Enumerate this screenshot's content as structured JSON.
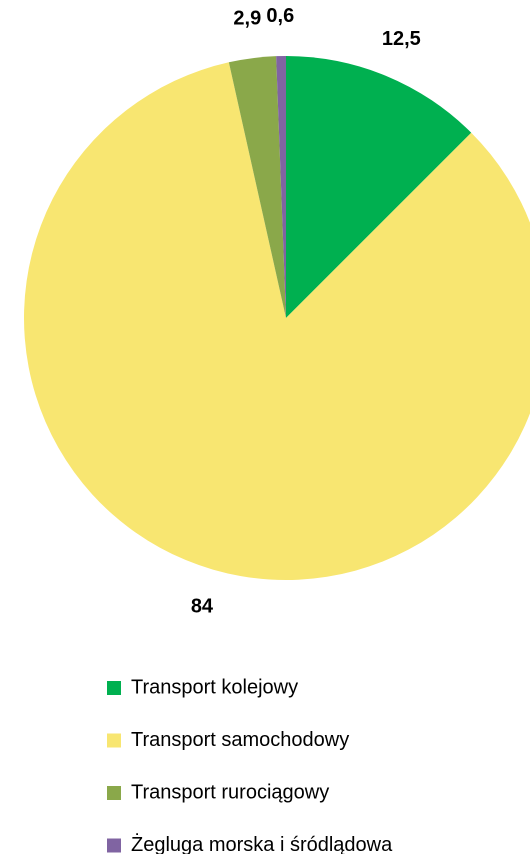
{
  "chart_data": {
    "type": "pie",
    "categories": [
      "Transport kolejowy",
      "Transport samochodowy",
      "Transport rurociągowy",
      "Żegluga morska i śródlądowa"
    ],
    "values": [
      12.5,
      84,
      2.9,
      0.6
    ],
    "value_labels": [
      "12,5",
      "84",
      "2,9",
      "0,6"
    ],
    "colors": [
      "#00b050",
      "#f8e671",
      "#8aa84a",
      "#8064a2"
    ],
    "legend": "bottom"
  }
}
